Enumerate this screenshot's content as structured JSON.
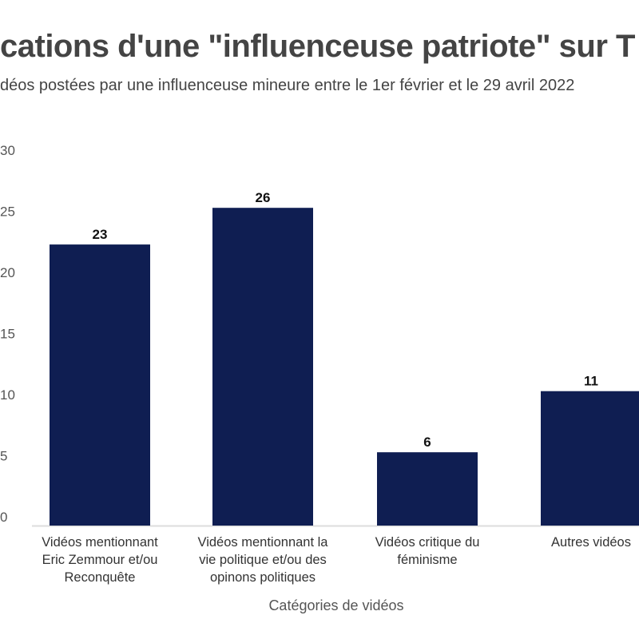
{
  "title": "cations d'une \"influenceuse patriote\" sur T",
  "subtitle": "déos postées par une influenceuse mineure entre le 1er février et le 29 avril 2022",
  "chart_data": {
    "type": "bar",
    "categories": [
      [
        "Vidéos mentionnant",
        "Eric Zemmour et/ou",
        "Reconquête"
      ],
      [
        "Vidéos mentionnant la",
        "vie politique et/ou des",
        "opinons politiques"
      ],
      [
        "Vidéos critique du",
        "féminisme"
      ],
      [
        "Autres vidéos"
      ]
    ],
    "values": [
      23,
      26,
      6,
      11
    ],
    "xlabel": "Catégories de vidéos",
    "ylabel": "",
    "ylim": [
      0,
      30
    ],
    "yticks": [
      0,
      5,
      10,
      15,
      20,
      25,
      30
    ],
    "grid": false,
    "bar_color": "#0f1e52"
  }
}
